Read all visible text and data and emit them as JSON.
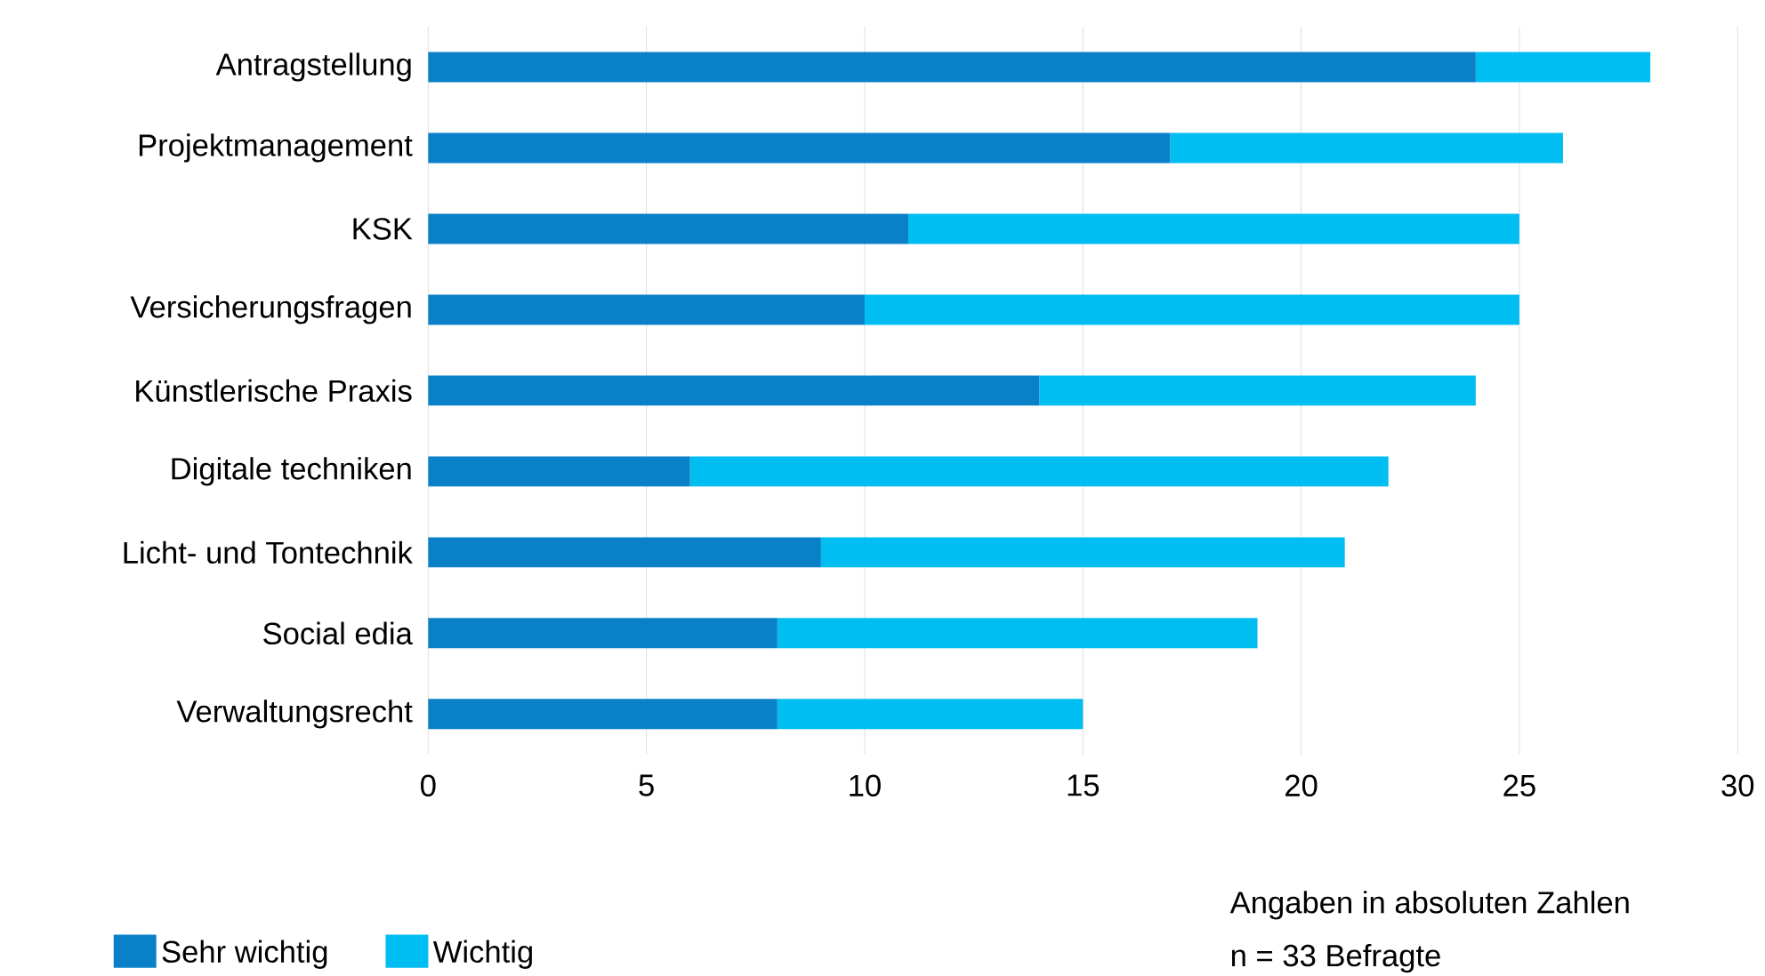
{
  "chart_data": {
    "type": "bar",
    "orientation": "horizontal",
    "stacked": true,
    "categories": [
      "Antragstellung",
      "Projektmanagement",
      "KSK",
      "Versicherungsfragen",
      "Künstlerische Praxis",
      "Digitale techniken",
      "Licht- und Tontechnik",
      "Social edia",
      "Verwaltungsrecht"
    ],
    "series": [
      {
        "name": "Sehr wichtig",
        "color": "#0a80c8",
        "values": [
          24,
          17,
          11,
          10,
          14,
          6,
          9,
          8,
          8
        ]
      },
      {
        "name": "Wichtig",
        "color": "#00bdf2",
        "values": [
          4,
          9,
          14,
          15,
          10,
          16,
          12,
          11,
          7
        ]
      }
    ],
    "xlim": [
      0,
      30
    ],
    "xticks": [
      0,
      5,
      10,
      15,
      20,
      25,
      30
    ],
    "grid": "x",
    "legend": "bottom left",
    "annotations": [
      "Angaben in absoluten Zahlen",
      "n = 33 Befragte"
    ]
  }
}
